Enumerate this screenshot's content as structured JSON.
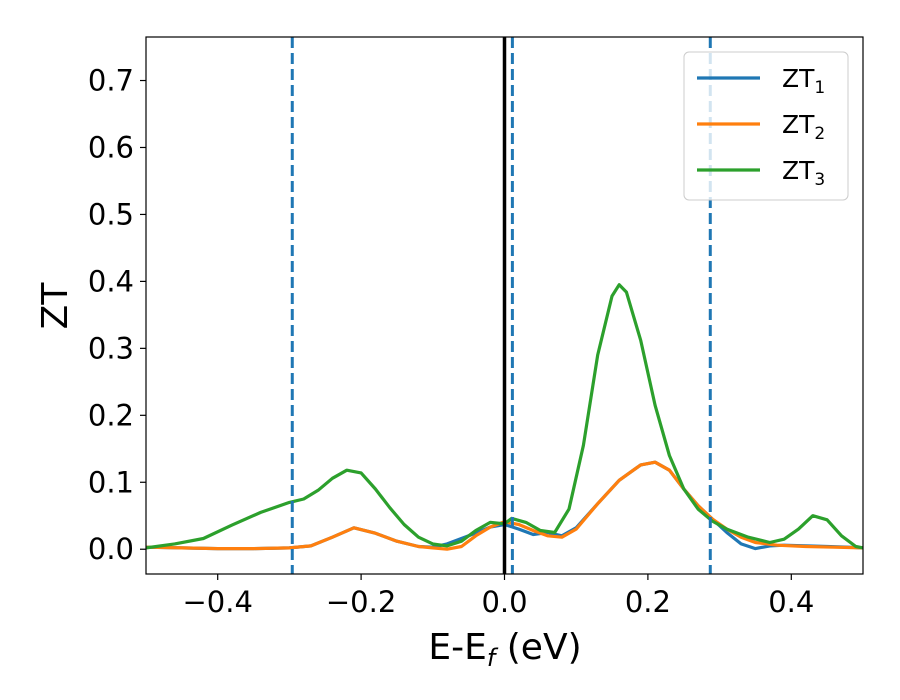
{
  "chart_data": {
    "type": "line",
    "xlabel": {
      "main": "E-E",
      "sub": "f",
      "tail": " (eV)"
    },
    "ylabel": "ZT",
    "xlim": [
      -0.5,
      0.5
    ],
    "ylim": [
      -0.037,
      0.765
    ],
    "xticks": [
      -0.4,
      -0.2,
      0.0,
      0.2,
      0.4
    ],
    "xtick_labels": [
      "−0.4",
      "−0.2",
      "0.0",
      "0.2",
      "0.4"
    ],
    "yticks": [
      0.0,
      0.1,
      0.2,
      0.3,
      0.4,
      0.5,
      0.6,
      0.7
    ],
    "ytick_labels": [
      "0.0",
      "0.1",
      "0.2",
      "0.3",
      "0.4",
      "0.5",
      "0.6",
      "0.7"
    ],
    "grid": false,
    "legend_position": "top-right",
    "fermi_line": {
      "x": 0.0,
      "color": "#000000"
    },
    "dashed_lines": [
      {
        "x": -0.296,
        "color": "#1f77b4"
      },
      {
        "x": 0.011,
        "color": "#1f77b4"
      },
      {
        "x": 0.287,
        "color": "#1f77b4"
      }
    ],
    "series": [
      {
        "name": "ZT",
        "sub": "1",
        "color": "#1f77b4",
        "points": [
          [
            -0.5,
            0.003
          ],
          [
            -0.45,
            0.002
          ],
          [
            -0.4,
            0.001
          ],
          [
            -0.35,
            0.001
          ],
          [
            -0.3,
            0.002
          ],
          [
            -0.27,
            0.005
          ],
          [
            -0.24,
            0.018
          ],
          [
            -0.21,
            0.032
          ],
          [
            -0.18,
            0.024
          ],
          [
            -0.15,
            0.012
          ],
          [
            -0.12,
            0.004
          ],
          [
            -0.1,
            0.003
          ],
          [
            -0.08,
            0.008
          ],
          [
            -0.05,
            0.02
          ],
          [
            -0.02,
            0.033
          ],
          [
            0.0,
            0.037
          ],
          [
            0.02,
            0.03
          ],
          [
            0.04,
            0.022
          ],
          [
            0.06,
            0.025
          ],
          [
            0.08,
            0.02
          ],
          [
            0.1,
            0.032
          ],
          [
            0.13,
            0.068
          ],
          [
            0.16,
            0.103
          ],
          [
            0.19,
            0.126
          ],
          [
            0.21,
            0.13
          ],
          [
            0.23,
            0.118
          ],
          [
            0.25,
            0.09
          ],
          [
            0.27,
            0.065
          ],
          [
            0.29,
            0.045
          ],
          [
            0.31,
            0.025
          ],
          [
            0.33,
            0.008
          ],
          [
            0.35,
            0.001
          ],
          [
            0.37,
            0.005
          ],
          [
            0.39,
            0.006
          ],
          [
            0.42,
            0.005
          ],
          [
            0.45,
            0.004
          ],
          [
            0.48,
            0.003
          ],
          [
            0.5,
            0.002
          ]
        ]
      },
      {
        "name": "ZT",
        "sub": "2",
        "color": "#ff7f0e",
        "points": [
          [
            -0.5,
            0.003
          ],
          [
            -0.45,
            0.002
          ],
          [
            -0.4,
            0.001
          ],
          [
            -0.35,
            0.001
          ],
          [
            -0.3,
            0.002
          ],
          [
            -0.27,
            0.005
          ],
          [
            -0.24,
            0.018
          ],
          [
            -0.21,
            0.032
          ],
          [
            -0.18,
            0.024
          ],
          [
            -0.15,
            0.012
          ],
          [
            -0.12,
            0.004
          ],
          [
            -0.1,
            0.002
          ],
          [
            -0.08,
            0.0
          ],
          [
            -0.06,
            0.004
          ],
          [
            -0.04,
            0.02
          ],
          [
            -0.02,
            0.033
          ],
          [
            0.0,
            0.041
          ],
          [
            0.02,
            0.037
          ],
          [
            0.04,
            0.028
          ],
          [
            0.06,
            0.02
          ],
          [
            0.08,
            0.018
          ],
          [
            0.1,
            0.03
          ],
          [
            0.13,
            0.068
          ],
          [
            0.16,
            0.103
          ],
          [
            0.19,
            0.126
          ],
          [
            0.21,
            0.13
          ],
          [
            0.23,
            0.118
          ],
          [
            0.25,
            0.09
          ],
          [
            0.27,
            0.065
          ],
          [
            0.29,
            0.045
          ],
          [
            0.31,
            0.03
          ],
          [
            0.33,
            0.018
          ],
          [
            0.35,
            0.01
          ],
          [
            0.38,
            0.006
          ],
          [
            0.42,
            0.004
          ],
          [
            0.46,
            0.003
          ],
          [
            0.5,
            0.002
          ]
        ]
      },
      {
        "name": "ZT",
        "sub": "3",
        "color": "#2ca02c",
        "points": [
          [
            -0.5,
            0.002
          ],
          [
            -0.46,
            0.008
          ],
          [
            -0.42,
            0.016
          ],
          [
            -0.38,
            0.036
          ],
          [
            -0.34,
            0.055
          ],
          [
            -0.3,
            0.07
          ],
          [
            -0.28,
            0.075
          ],
          [
            -0.26,
            0.088
          ],
          [
            -0.24,
            0.106
          ],
          [
            -0.22,
            0.118
          ],
          [
            -0.2,
            0.114
          ],
          [
            -0.18,
            0.09
          ],
          [
            -0.16,
            0.062
          ],
          [
            -0.14,
            0.037
          ],
          [
            -0.12,
            0.018
          ],
          [
            -0.1,
            0.008
          ],
          [
            -0.08,
            0.005
          ],
          [
            -0.06,
            0.012
          ],
          [
            -0.04,
            0.028
          ],
          [
            -0.02,
            0.04
          ],
          [
            0.0,
            0.038
          ],
          [
            0.01,
            0.046
          ],
          [
            0.03,
            0.04
          ],
          [
            0.05,
            0.028
          ],
          [
            0.07,
            0.025
          ],
          [
            0.09,
            0.06
          ],
          [
            0.11,
            0.155
          ],
          [
            0.13,
            0.29
          ],
          [
            0.15,
            0.378
          ],
          [
            0.16,
            0.395
          ],
          [
            0.17,
            0.384
          ],
          [
            0.19,
            0.312
          ],
          [
            0.21,
            0.215
          ],
          [
            0.23,
            0.14
          ],
          [
            0.25,
            0.09
          ],
          [
            0.27,
            0.06
          ],
          [
            0.29,
            0.042
          ],
          [
            0.31,
            0.03
          ],
          [
            0.34,
            0.018
          ],
          [
            0.37,
            0.01
          ],
          [
            0.39,
            0.015
          ],
          [
            0.41,
            0.03
          ],
          [
            0.43,
            0.05
          ],
          [
            0.45,
            0.044
          ],
          [
            0.47,
            0.02
          ],
          [
            0.49,
            0.004
          ],
          [
            0.5,
            0.002
          ]
        ]
      }
    ]
  }
}
